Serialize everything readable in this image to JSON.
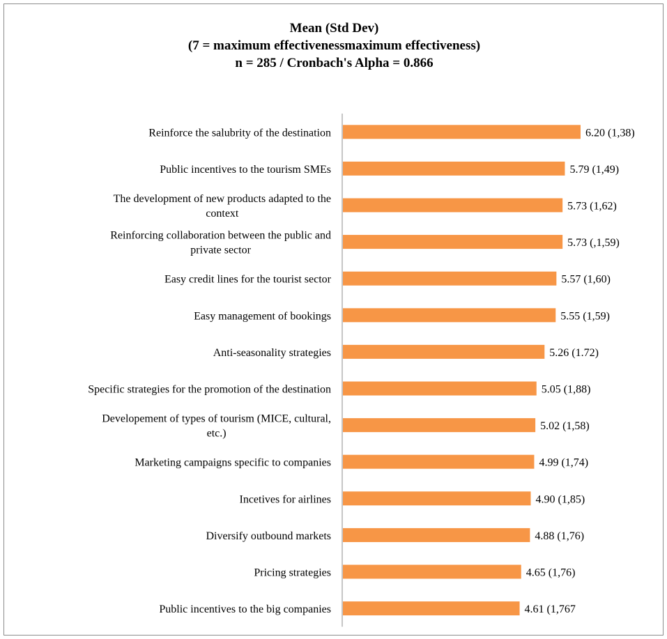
{
  "chart_data": {
    "type": "bar",
    "orientation": "horizontal",
    "title_lines": [
      "Mean (Std Dev)",
      "(7 = maximum effectivenessmaximum effectiveness)",
      "n = 285 / Cronbach's Alpha = 0.866"
    ],
    "xlabel": "",
    "ylabel": "",
    "xlim": [
      0,
      7
    ],
    "grid": false,
    "legend": "none",
    "bar_color": "#F79646",
    "axis_color": "#8C8C8C",
    "categories": [
      "Reinforce the salubrity of the destination",
      "Public incentives to the tourism SMEs",
      "The development of new products adapted to the context",
      "Reinforcing collaboration between the public and private sector",
      "Easy credit lines for the tourist sector",
      "Easy management of bookings",
      "Anti-seasonality strategies",
      "Specific strategies for the promotion of the destination",
      "Developement of types of tourism (MICE, cultural, etc.)",
      "Marketing campaigns specific to companies",
      "Incetives for airlines",
      "Diversify outbound markets",
      "Pricing strategies",
      "Public incentives to the big companies"
    ],
    "category_lines": [
      [
        "Reinforce the salubrity of the destination"
      ],
      [
        "Public incentives to the tourism SMEs"
      ],
      [
        "The development of new products adapted to the",
        "context"
      ],
      [
        "Reinforcing collaboration between the public and",
        "private sector"
      ],
      [
        "Easy credit lines for the tourist sector"
      ],
      [
        "Easy management of bookings"
      ],
      [
        "Anti-seasonality strategies"
      ],
      [
        "Specific strategies for the promotion of the destination"
      ],
      [
        "Developement of types of tourism (MICE, cultural,",
        "etc.)"
      ],
      [
        "Marketing campaigns specific to companies"
      ],
      [
        "Incetives for airlines"
      ],
      [
        "Diversify outbound markets"
      ],
      [
        "Pricing strategies"
      ],
      [
        "Public incentives to the big companies"
      ]
    ],
    "values": [
      6.2,
      5.79,
      5.73,
      5.73,
      5.57,
      5.55,
      5.26,
      5.05,
      5.02,
      4.99,
      4.9,
      4.88,
      4.65,
      4.61
    ],
    "data_labels": [
      "6.20 (1,38)",
      "5.79 (1,49)",
      "5.73 (1,62)",
      "5.73 (,1,59)",
      "5.57 (1,60)",
      "5.55 (1,59)",
      "5.26 (1.72)",
      "5.05 (1,88)",
      "5.02 (1,58)",
      "4.99 (1,74)",
      "4.90 (1,85)",
      "4.88 (1,76)",
      "4.65 (1,76)",
      "4.61 (1,767"
    ]
  }
}
